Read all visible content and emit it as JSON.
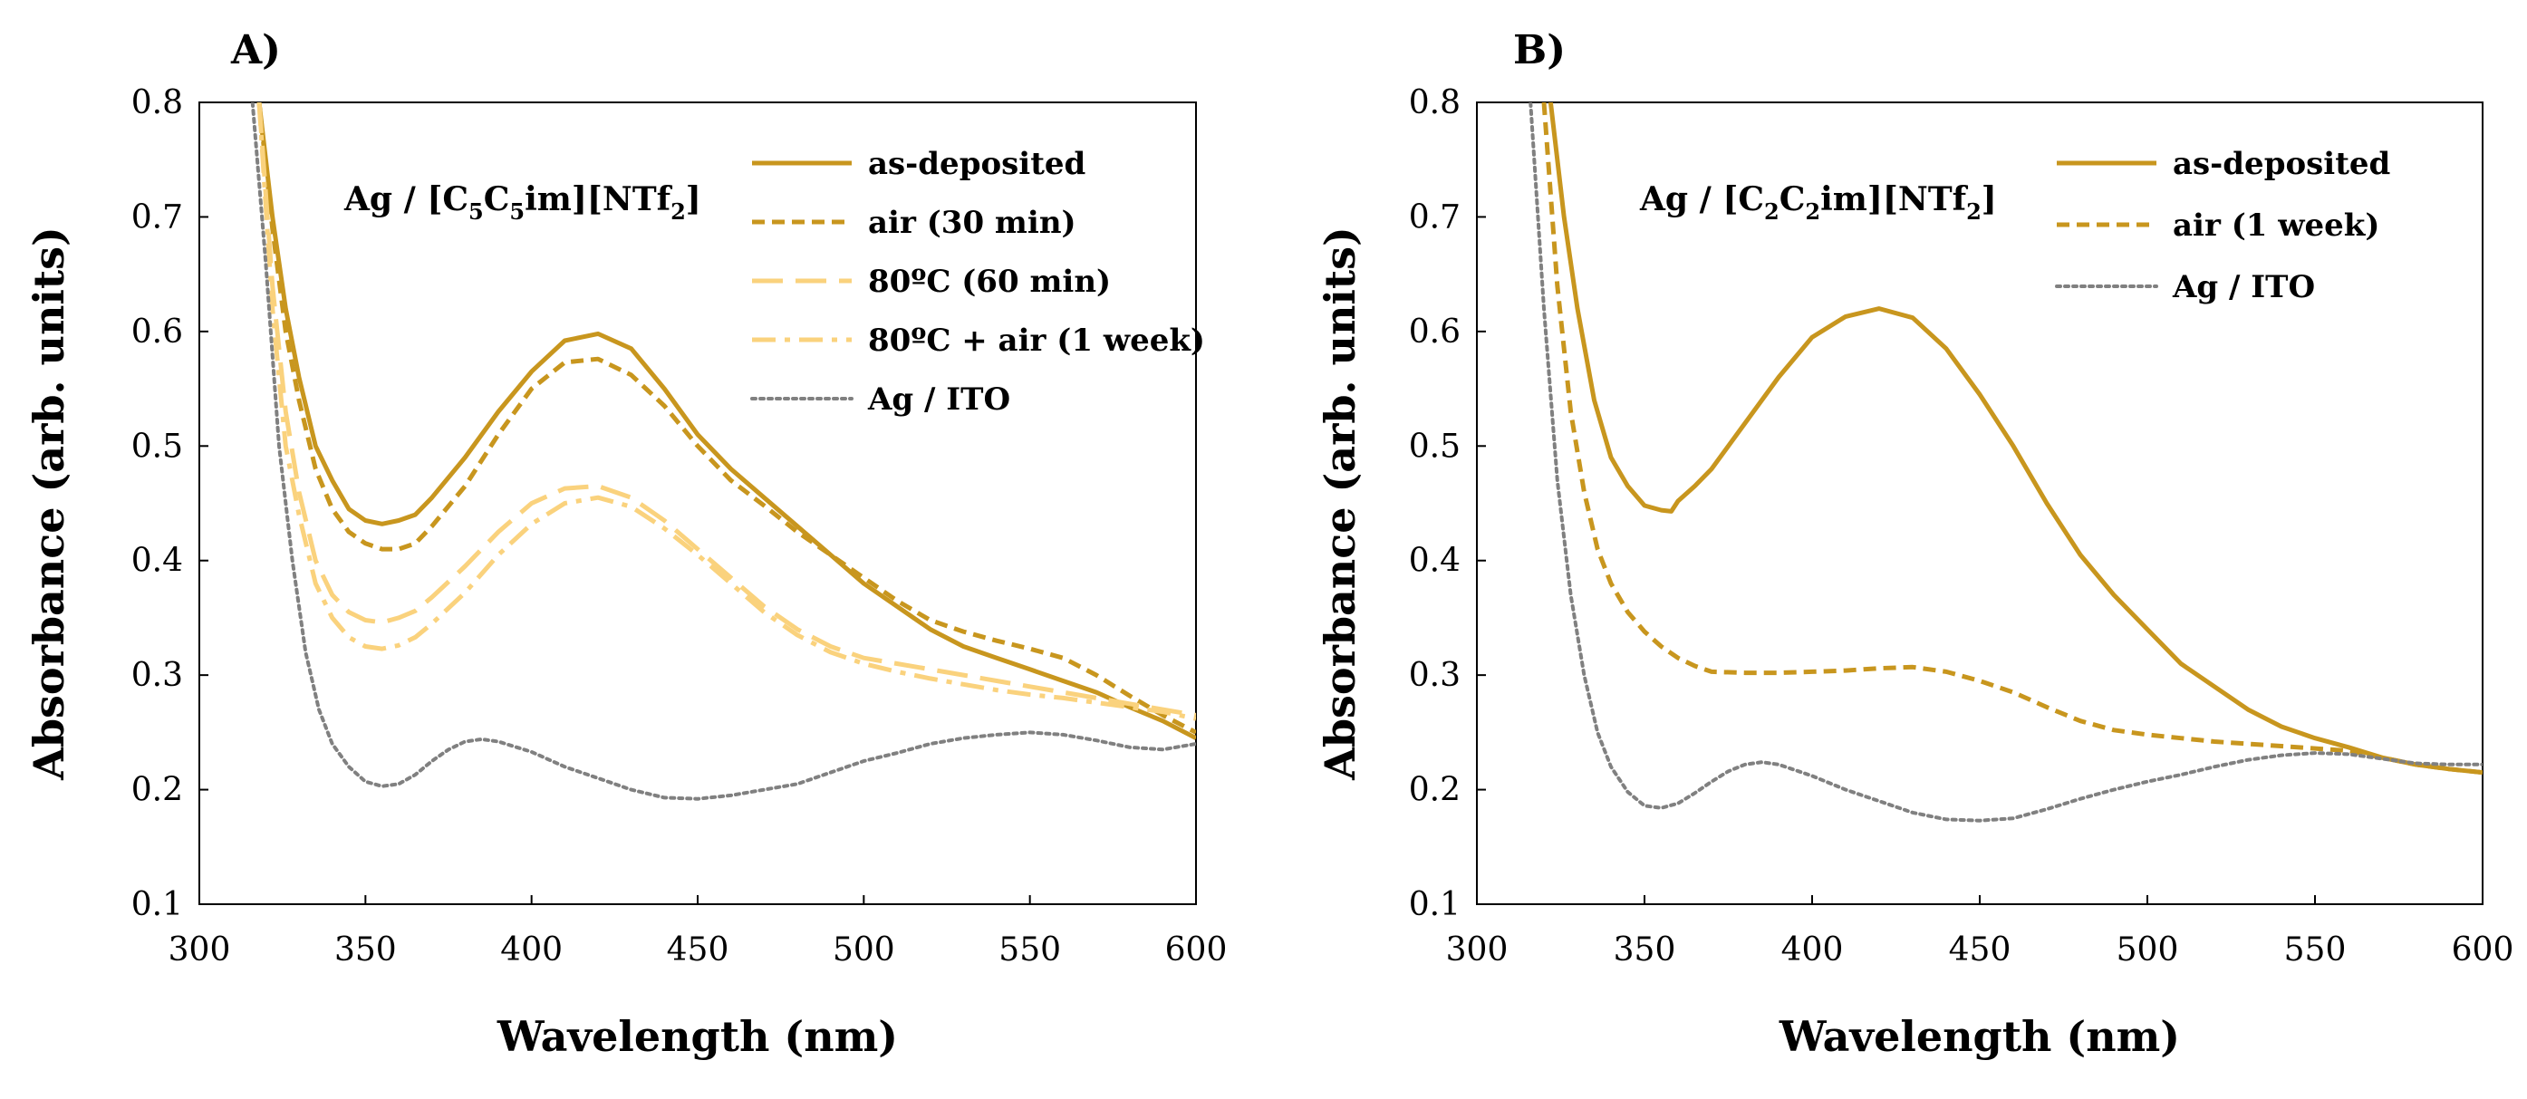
{
  "chart_data": [
    {
      "panel": "A)",
      "type": "line",
      "sample_label": {
        "prefix": "Ag / [C",
        "sub1": "5",
        "mid1": "C",
        "sub2": "5",
        "mid2": "im][NTf",
        "sub3": "2",
        "suffix": "]"
      },
      "xlabel": "Wavelength (nm)",
      "ylabel": "Absorbance (arb. units)",
      "xlim": [
        300,
        600
      ],
      "ylim": [
        0.1,
        0.8
      ],
      "xticks": [
        "300",
        "350",
        "400",
        "450",
        "500",
        "550",
        "600"
      ],
      "yticks": [
        "0.1",
        "0.2",
        "0.3",
        "0.4",
        "0.5",
        "0.6",
        "0.7",
        "0.8"
      ],
      "grid": false,
      "legend_position": "top-right",
      "series": [
        {
          "name": "as-deposited",
          "style": "solid",
          "color": "#c8961e",
          "x": [
            318,
            322,
            326,
            330,
            335,
            340,
            345,
            350,
            355,
            360,
            365,
            370,
            380,
            390,
            400,
            410,
            420,
            430,
            440,
            450,
            460,
            470,
            480,
            490,
            500,
            510,
            520,
            530,
            540,
            550,
            560,
            570,
            580,
            590,
            600
          ],
          "y": [
            0.8,
            0.7,
            0.62,
            0.56,
            0.5,
            0.47,
            0.445,
            0.435,
            0.432,
            0.435,
            0.44,
            0.455,
            0.49,
            0.53,
            0.565,
            0.592,
            0.598,
            0.585,
            0.55,
            0.51,
            0.48,
            0.455,
            0.43,
            0.405,
            0.38,
            0.36,
            0.34,
            0.325,
            0.315,
            0.305,
            0.295,
            0.285,
            0.272,
            0.26,
            0.245
          ]
        },
        {
          "name": "air (30 min)",
          "style": "short-dash",
          "color": "#c8961e",
          "x": [
            318,
            322,
            326,
            330,
            335,
            340,
            345,
            350,
            355,
            360,
            365,
            370,
            380,
            390,
            400,
            410,
            420,
            430,
            440,
            450,
            460,
            470,
            480,
            490,
            500,
            510,
            520,
            530,
            540,
            550,
            560,
            570,
            580,
            590,
            600
          ],
          "y": [
            0.8,
            0.69,
            0.6,
            0.54,
            0.48,
            0.445,
            0.425,
            0.415,
            0.41,
            0.41,
            0.415,
            0.43,
            0.465,
            0.51,
            0.55,
            0.573,
            0.576,
            0.562,
            0.535,
            0.5,
            0.47,
            0.448,
            0.425,
            0.405,
            0.385,
            0.365,
            0.348,
            0.338,
            0.33,
            0.323,
            0.315,
            0.3,
            0.282,
            0.265,
            0.25
          ]
        },
        {
          "name": "80ºC (60 min)",
          "style": "long-dash",
          "color": "#fad27d",
          "x": [
            318,
            322,
            326,
            330,
            335,
            340,
            345,
            350,
            355,
            360,
            365,
            370,
            380,
            390,
            400,
            410,
            420,
            430,
            440,
            450,
            460,
            470,
            480,
            490,
            500,
            510,
            520,
            530,
            540,
            550,
            560,
            570,
            580,
            590,
            600
          ],
          "y": [
            0.8,
            0.64,
            0.53,
            0.46,
            0.4,
            0.37,
            0.355,
            0.348,
            0.346,
            0.35,
            0.356,
            0.368,
            0.395,
            0.425,
            0.45,
            0.463,
            0.465,
            0.455,
            0.435,
            0.41,
            0.385,
            0.36,
            0.34,
            0.325,
            0.315,
            0.31,
            0.305,
            0.3,
            0.295,
            0.29,
            0.285,
            0.28,
            0.275,
            0.27,
            0.265
          ]
        },
        {
          "name": "80ºC + air (1 week)",
          "style": "dash-dot",
          "color": "#fad27d",
          "x": [
            318,
            322,
            326,
            330,
            335,
            340,
            345,
            350,
            355,
            360,
            365,
            370,
            380,
            390,
            400,
            410,
            420,
            430,
            440,
            450,
            460,
            470,
            480,
            490,
            500,
            510,
            520,
            530,
            540,
            550,
            560,
            570,
            580,
            590,
            600
          ],
          "y": [
            0.8,
            0.62,
            0.5,
            0.44,
            0.38,
            0.35,
            0.333,
            0.325,
            0.323,
            0.326,
            0.333,
            0.345,
            0.372,
            0.405,
            0.432,
            0.45,
            0.455,
            0.447,
            0.428,
            0.405,
            0.38,
            0.355,
            0.335,
            0.32,
            0.31,
            0.303,
            0.297,
            0.292,
            0.287,
            0.283,
            0.28,
            0.276,
            0.272,
            0.268,
            0.262
          ]
        },
        {
          "name": "Ag / ITO",
          "style": "dotted",
          "color": "#808080",
          "x": [
            316,
            320,
            324,
            328,
            332,
            336,
            340,
            345,
            350,
            355,
            360,
            365,
            370,
            375,
            380,
            385,
            390,
            400,
            410,
            420,
            430,
            440,
            450,
            460,
            470,
            480,
            490,
            500,
            510,
            520,
            530,
            540,
            550,
            560,
            570,
            580,
            590,
            600
          ],
          "y": [
            0.8,
            0.66,
            0.5,
            0.4,
            0.32,
            0.27,
            0.24,
            0.22,
            0.207,
            0.203,
            0.205,
            0.213,
            0.225,
            0.235,
            0.242,
            0.244,
            0.242,
            0.233,
            0.22,
            0.21,
            0.2,
            0.193,
            0.192,
            0.195,
            0.2,
            0.205,
            0.215,
            0.225,
            0.232,
            0.24,
            0.245,
            0.248,
            0.25,
            0.248,
            0.243,
            0.237,
            0.235,
            0.24
          ]
        }
      ]
    },
    {
      "panel": "B)",
      "type": "line",
      "sample_label": {
        "prefix": "Ag / [C",
        "sub1": "2",
        "mid1": "C",
        "sub2": "2",
        "mid2": "im][NTf",
        "sub3": "2",
        "suffix": "]"
      },
      "xlabel": "Wavelength (nm)",
      "ylabel": "Absorbance (arb. units)",
      "xlim": [
        300,
        600
      ],
      "ylim": [
        0.1,
        0.8
      ],
      "xticks": [
        "300",
        "350",
        "400",
        "450",
        "500",
        "550",
        "600"
      ],
      "yticks": [
        "0.1",
        "0.2",
        "0.3",
        "0.4",
        "0.5",
        "0.6",
        "0.7",
        "0.8"
      ],
      "grid": false,
      "legend_position": "top-right",
      "series": [
        {
          "name": "as-deposited",
          "style": "solid",
          "color": "#c8961e",
          "x": [
            322,
            326,
            330,
            335,
            340,
            345,
            350,
            355,
            358,
            360,
            365,
            370,
            380,
            390,
            400,
            410,
            420,
            430,
            440,
            450,
            460,
            470,
            480,
            490,
            500,
            510,
            520,
            530,
            540,
            550,
            560,
            570,
            580,
            590,
            600
          ],
          "y": [
            0.8,
            0.7,
            0.62,
            0.54,
            0.49,
            0.465,
            0.448,
            0.444,
            0.443,
            0.452,
            0.465,
            0.48,
            0.52,
            0.56,
            0.595,
            0.613,
            0.62,
            0.612,
            0.585,
            0.545,
            0.5,
            0.45,
            0.405,
            0.37,
            0.34,
            0.31,
            0.29,
            0.27,
            0.255,
            0.245,
            0.237,
            0.228,
            0.222,
            0.218,
            0.215
          ]
        },
        {
          "name": "air (1 week)",
          "style": "short-dash",
          "color": "#c8961e",
          "x": [
            320,
            324,
            328,
            332,
            336,
            340,
            345,
            350,
            355,
            360,
            365,
            370,
            380,
            390,
            400,
            410,
            420,
            430,
            440,
            450,
            460,
            470,
            480,
            490,
            500,
            510,
            520,
            530,
            540,
            550,
            560,
            570,
            580,
            590,
            600
          ],
          "y": [
            0.8,
            0.64,
            0.53,
            0.46,
            0.41,
            0.38,
            0.355,
            0.338,
            0.325,
            0.315,
            0.308,
            0.303,
            0.302,
            0.302,
            0.303,
            0.304,
            0.306,
            0.307,
            0.303,
            0.295,
            0.285,
            0.272,
            0.26,
            0.252,
            0.248,
            0.245,
            0.242,
            0.24,
            0.238,
            0.236,
            0.234,
            0.228,
            0.222,
            0.218,
            0.215
          ]
        },
        {
          "name": "Ag / ITO",
          "style": "dotted",
          "color": "#808080",
          "x": [
            316,
            320,
            324,
            328,
            332,
            336,
            340,
            345,
            350,
            355,
            360,
            365,
            370,
            375,
            380,
            385,
            390,
            400,
            410,
            420,
            430,
            440,
            450,
            460,
            470,
            480,
            490,
            500,
            510,
            520,
            530,
            540,
            550,
            560,
            570,
            580,
            590,
            600
          ],
          "y": [
            0.8,
            0.62,
            0.47,
            0.37,
            0.3,
            0.25,
            0.22,
            0.198,
            0.186,
            0.184,
            0.188,
            0.197,
            0.207,
            0.216,
            0.222,
            0.224,
            0.222,
            0.212,
            0.2,
            0.19,
            0.18,
            0.174,
            0.173,
            0.175,
            0.183,
            0.192,
            0.2,
            0.207,
            0.213,
            0.22,
            0.226,
            0.23,
            0.232,
            0.231,
            0.227,
            0.223,
            0.222,
            0.222
          ]
        }
      ]
    }
  ]
}
